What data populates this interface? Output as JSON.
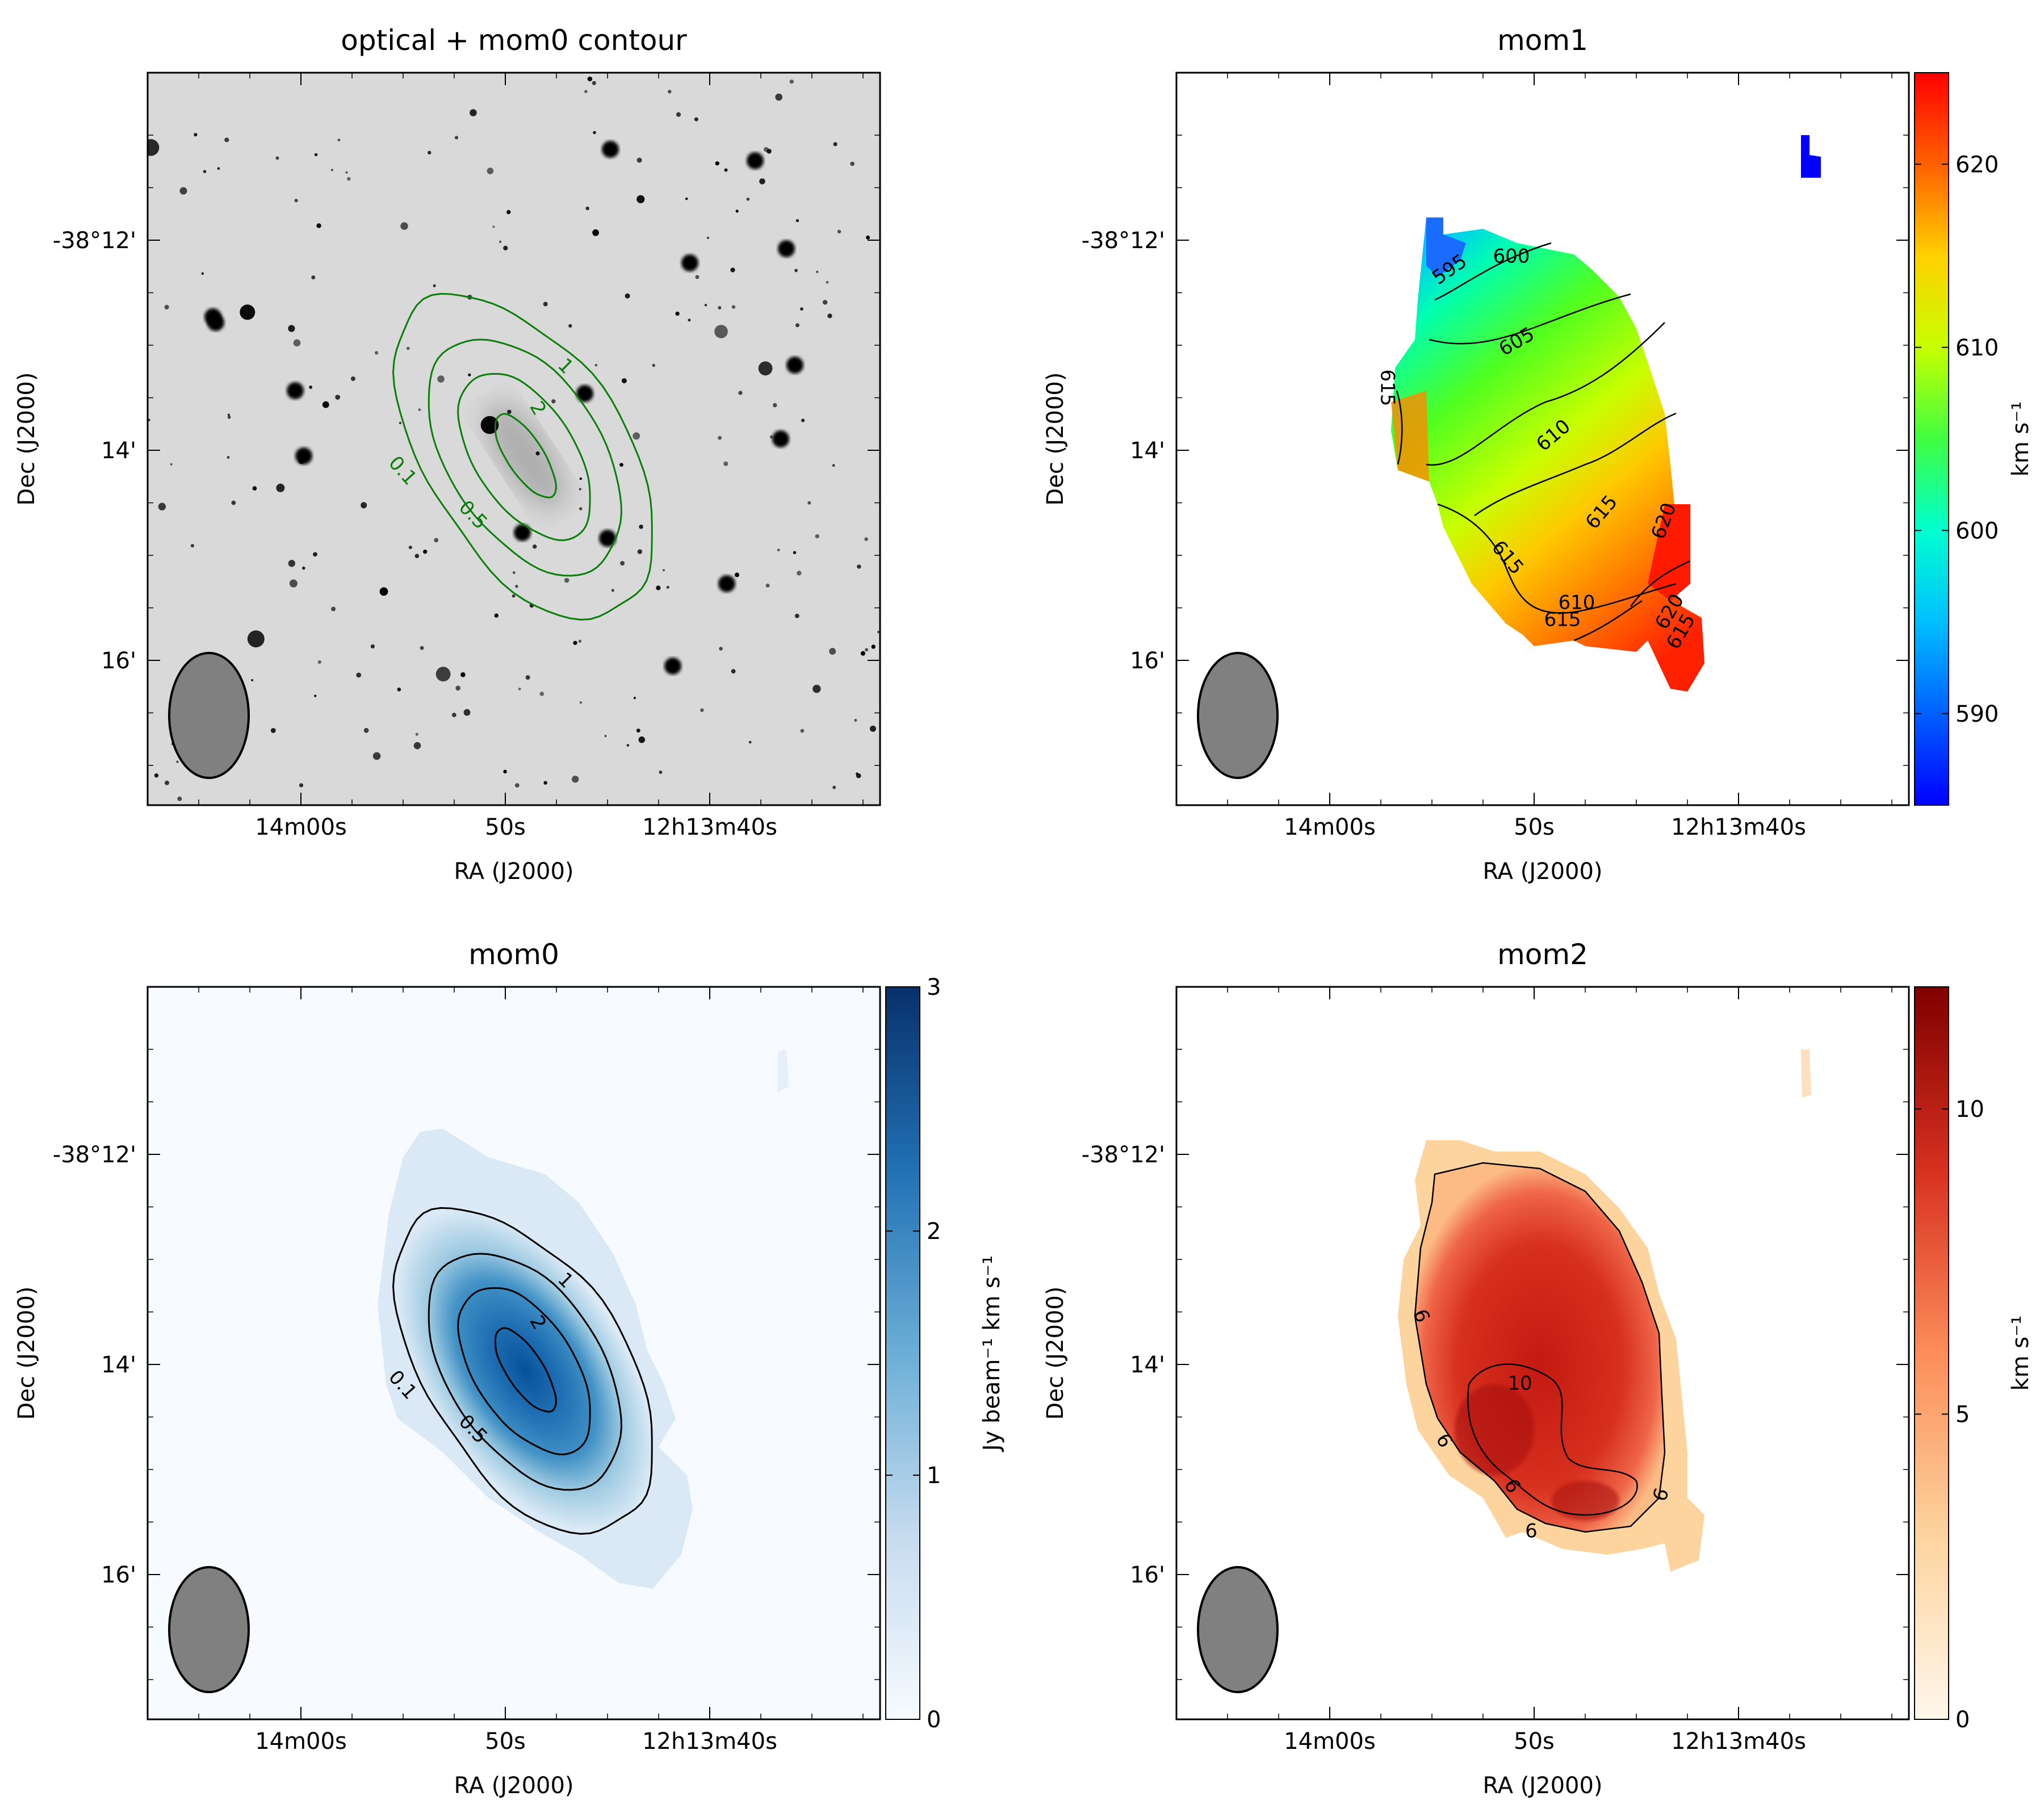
{
  "chart_data": [
    {
      "type": "heatmap",
      "title": "optical + mom0 contour",
      "xlabel": "RA (J2000)",
      "ylabel": "Dec (J2000)",
      "xticks": [
        "14m00s",
        "50s",
        "12h13m40s"
      ],
      "yticks": [
        "-38°12'",
        "14'",
        "16'"
      ],
      "image": "grayscale optical field with stars",
      "contours": {
        "color": "#0a7d0a",
        "levels": [
          0.1,
          0.5,
          1,
          2
        ],
        "labels": [
          "0.1",
          "0.5",
          "1",
          "2"
        ]
      },
      "beam": "grey ellipse lower-left"
    },
    {
      "type": "heatmap",
      "title": "mom1",
      "xlabel": "RA (J2000)",
      "ylabel": "Dec (J2000)",
      "xticks": [
        "14m00s",
        "50s",
        "12h13m40s"
      ],
      "yticks": [
        "-38°12'",
        "14'",
        "16'"
      ],
      "colormap": "jet",
      "colorbar": {
        "label": "km s⁻¹",
        "range": [
          585,
          625
        ],
        "ticks": [
          "590",
          "600",
          "610",
          "620"
        ]
      },
      "contours": {
        "color": "#000000",
        "labels": [
          "595",
          "600",
          "605",
          "610",
          "615",
          "615",
          "615",
          "610",
          "615",
          "620",
          "620",
          "615"
        ]
      },
      "beam": "grey ellipse lower-left"
    },
    {
      "type": "heatmap",
      "title": "mom0",
      "xlabel": "RA (J2000)",
      "ylabel": "Dec (J2000)",
      "xticks": [
        "14m00s",
        "50s",
        "12h13m40s"
      ],
      "yticks": [
        "-38°12'",
        "14'",
        "16'"
      ],
      "colormap": "Blues",
      "colorbar": {
        "label": "Jy beam⁻¹ km s⁻¹",
        "range": [
          0,
          3
        ],
        "ticks": [
          "0",
          "1",
          "2",
          "3"
        ]
      },
      "contours": {
        "color": "#000000",
        "levels": [
          0.1,
          0.5,
          1,
          2
        ],
        "labels": [
          "0.1",
          "0.5",
          "1",
          "2"
        ]
      },
      "beam": "grey ellipse lower-left"
    },
    {
      "type": "heatmap",
      "title": "mom2",
      "xlabel": "RA (J2000)",
      "ylabel": "Dec (J2000)",
      "xticks": [
        "14m00s",
        "50s",
        "12h13m40s"
      ],
      "yticks": [
        "-38°12'",
        "14'",
        "16'"
      ],
      "colormap": "OrRd",
      "colorbar": {
        "label": "km s⁻¹",
        "range": [
          0,
          12
        ],
        "ticks": [
          "0",
          "5",
          "10"
        ]
      },
      "contours": {
        "color": "#000000",
        "levels": [
          6,
          10
        ],
        "labels": [
          "6",
          "10",
          "6",
          "6",
          "6",
          "6"
        ]
      },
      "beam": "grey ellipse lower-left"
    }
  ]
}
